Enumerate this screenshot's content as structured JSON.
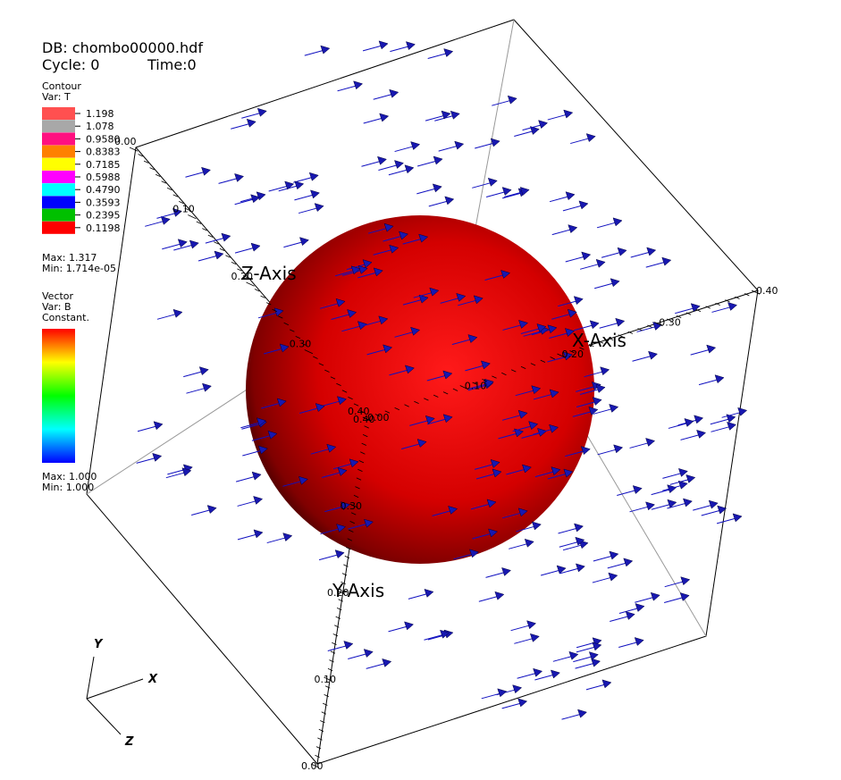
{
  "header": {
    "db": "DB: chombo00000.hdf",
    "cycle": "Cycle: 0",
    "time": "Time:0"
  },
  "contour_legend": {
    "title": "Contour",
    "var": "Var: T",
    "entries": [
      {
        "label": "1.198",
        "color": "#ff5050"
      },
      {
        "label": "1.078",
        "color": "#a8a8a8"
      },
      {
        "label": "0.9580",
        "color": "#ff1080"
      },
      {
        "label": "0.8383",
        "color": "#ff8000"
      },
      {
        "label": "0.7185",
        "color": "#ffff00"
      },
      {
        "label": "0.5988",
        "color": "#ff00ff"
      },
      {
        "label": "0.4790",
        "color": "#00ffff"
      },
      {
        "label": "0.3593",
        "color": "#0000ff"
      },
      {
        "label": "0.2395",
        "color": "#00c000"
      },
      {
        "label": "0.1198",
        "color": "#ff0000"
      }
    ],
    "max": "Max:  1.317",
    "min": "Min:  1.714e-05"
  },
  "vector_legend": {
    "title": "Vector",
    "var": "Var: B",
    "mode": "Constant.",
    "max": "Max:  1.000",
    "min": "Min:  1.000"
  },
  "axes": {
    "x_title": "X-Axis",
    "y_title": "Y-Axis",
    "z_title": "Z-Axis",
    "x_ticks": [
      "0.00",
      "0.10",
      "0.20",
      "0.30",
      "0.40"
    ],
    "y_ticks": [
      "0.40",
      "0.30",
      "0.20",
      "0.10",
      "0.00"
    ],
    "z_ticks": [
      "0.00",
      "0.10",
      "0.20",
      "0.30",
      "0.40"
    ]
  },
  "triad": {
    "x": "X",
    "y": "Y",
    "z": "Z"
  }
}
